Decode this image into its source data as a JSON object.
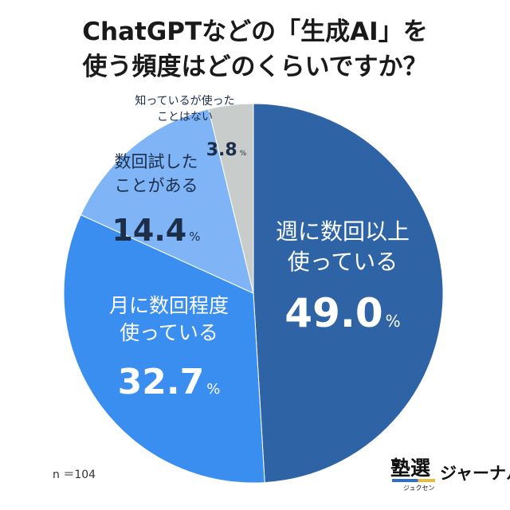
{
  "title_lines": [
    "ChatGPTなどの「生成AI」を",
    "使う頻度はどのくらいですか？"
  ],
  "chart_data": {
    "type": "pie",
    "title": "ChatGPTなどの「生成AI」を使う頻度はどのくらいですか？",
    "unit": "%",
    "slices": [
      {
        "label": "週に数回以上使っている",
        "label_lines": [
          "週に数回以上",
          "使っている"
        ],
        "value": 49.0,
        "value_text": "49.0",
        "color": "#2e63a5"
      },
      {
        "label": "月に数回程度使っている",
        "label_lines": [
          "月に数回程度",
          "使っている"
        ],
        "value": 32.7,
        "value_text": "32.7",
        "color": "#3a8ef0"
      },
      {
        "label": "数回試したことがある",
        "label_lines": [
          "数回試した",
          "ことがある"
        ],
        "value": 14.4,
        "value_text": "14.4",
        "color": "#7fb5f7"
      },
      {
        "label": "知っているが使ったことはない",
        "label_lines": [
          "知っているが使った",
          "ことはない"
        ],
        "value": 3.8,
        "value_text": "3.8",
        "color": "#c8ccca"
      }
    ]
  },
  "sample_size": "n ＝104",
  "logo": {
    "main": "塾選",
    "sub": "ジャーナル",
    "ruby": "ジュクセン"
  }
}
